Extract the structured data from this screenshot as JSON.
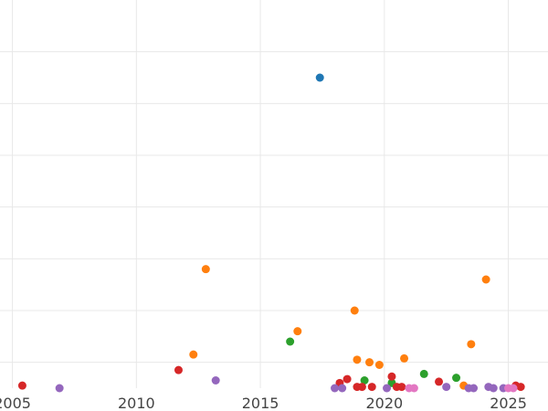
{
  "chart_data": {
    "type": "scatter",
    "title": "",
    "xlabel": "",
    "ylabel": "",
    "xlim": [
      2004.5,
      2026.6
    ],
    "ylim": [
      0.0,
      15.0
    ],
    "grid": true,
    "xticks": [
      {
        "value": 2005,
        "label": "2005"
      },
      {
        "value": 2010,
        "label": "2010"
      },
      {
        "value": 2015,
        "label": "2015"
      },
      {
        "value": 2020,
        "label": "2020"
      },
      {
        "value": 2025,
        "label": "2025"
      }
    ],
    "yticks": [
      1,
      3,
      5,
      7,
      9,
      11,
      13
    ],
    "colors": {
      "blue": "#1f77b4",
      "orange": "#ff7f0e",
      "green": "#2ca02c",
      "red": "#d62728",
      "purple": "#9467bd",
      "pink": "#e377c2"
    },
    "points": [
      {
        "x": 2017.4,
        "y": 12.0,
        "color": "blue"
      },
      {
        "x": 2012.8,
        "y": 4.6,
        "color": "orange"
      },
      {
        "x": 2012.3,
        "y": 1.3,
        "color": "orange"
      },
      {
        "x": 2016.5,
        "y": 2.2,
        "color": "orange"
      },
      {
        "x": 2018.8,
        "y": 3.0,
        "color": "orange"
      },
      {
        "x": 2018.9,
        "y": 1.1,
        "color": "orange"
      },
      {
        "x": 2019.4,
        "y": 1.0,
        "color": "orange"
      },
      {
        "x": 2019.8,
        "y": 0.9,
        "color": "orange"
      },
      {
        "x": 2020.8,
        "y": 1.15,
        "color": "orange"
      },
      {
        "x": 2023.2,
        "y": 0.1,
        "color": "orange"
      },
      {
        "x": 2023.5,
        "y": 1.7,
        "color": "orange"
      },
      {
        "x": 2024.1,
        "y": 4.2,
        "color": "orange"
      },
      {
        "x": 2016.2,
        "y": 1.8,
        "color": "green"
      },
      {
        "x": 2019.2,
        "y": 0.3,
        "color": "green"
      },
      {
        "x": 2020.3,
        "y": 0.2,
        "color": "green"
      },
      {
        "x": 2021.6,
        "y": 0.55,
        "color": "green"
      },
      {
        "x": 2022.9,
        "y": 0.4,
        "color": "green"
      },
      {
        "x": 2005.4,
        "y": 0.1,
        "color": "red"
      },
      {
        "x": 2011.7,
        "y": 0.7,
        "color": "red"
      },
      {
        "x": 2018.2,
        "y": 0.2,
        "color": "red"
      },
      {
        "x": 2018.5,
        "y": 0.35,
        "color": "red"
      },
      {
        "x": 2018.9,
        "y": 0.05,
        "color": "red"
      },
      {
        "x": 2019.1,
        "y": 0.05,
        "color": "red"
      },
      {
        "x": 2019.5,
        "y": 0.05,
        "color": "red"
      },
      {
        "x": 2020.3,
        "y": 0.45,
        "color": "red"
      },
      {
        "x": 2020.5,
        "y": 0.05,
        "color": "red"
      },
      {
        "x": 2020.7,
        "y": 0.05,
        "color": "red"
      },
      {
        "x": 2022.2,
        "y": 0.25,
        "color": "red"
      },
      {
        "x": 2025.3,
        "y": 0.1,
        "color": "red"
      },
      {
        "x": 2025.5,
        "y": 0.05,
        "color": "red"
      },
      {
        "x": 2006.9,
        "y": 0.0,
        "color": "purple"
      },
      {
        "x": 2013.2,
        "y": 0.3,
        "color": "purple"
      },
      {
        "x": 2018.0,
        "y": 0.0,
        "color": "purple"
      },
      {
        "x": 2018.3,
        "y": 0.0,
        "color": "purple"
      },
      {
        "x": 2020.1,
        "y": 0.0,
        "color": "purple"
      },
      {
        "x": 2022.5,
        "y": 0.05,
        "color": "purple"
      },
      {
        "x": 2023.4,
        "y": 0.0,
        "color": "purple"
      },
      {
        "x": 2023.6,
        "y": 0.0,
        "color": "purple"
      },
      {
        "x": 2024.2,
        "y": 0.05,
        "color": "purple"
      },
      {
        "x": 2024.4,
        "y": 0.0,
        "color": "purple"
      },
      {
        "x": 2024.8,
        "y": 0.0,
        "color": "purple"
      },
      {
        "x": 2021.0,
        "y": 0.0,
        "color": "pink"
      },
      {
        "x": 2021.2,
        "y": 0.0,
        "color": "pink"
      },
      {
        "x": 2025.0,
        "y": 0.0,
        "color": "pink"
      },
      {
        "x": 2025.2,
        "y": 0.0,
        "color": "pink"
      }
    ]
  }
}
